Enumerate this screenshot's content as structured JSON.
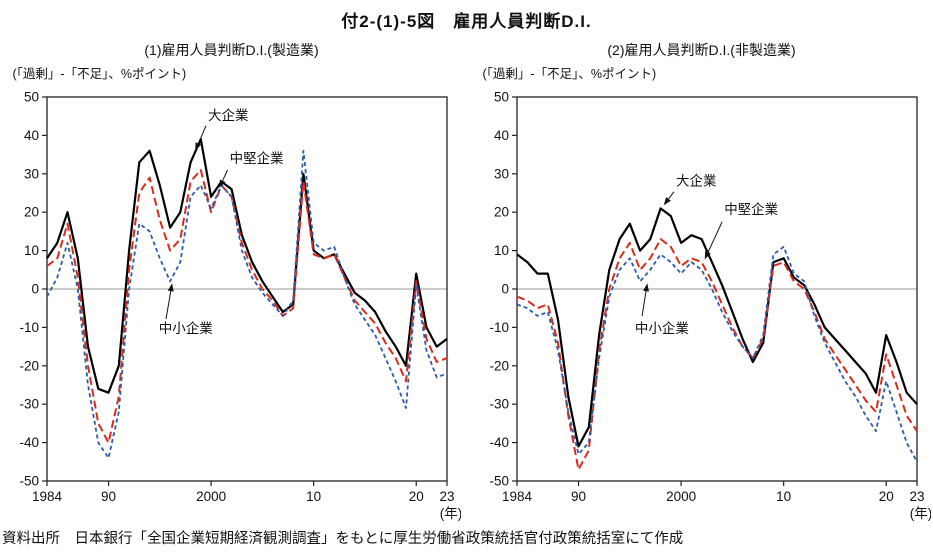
{
  "page": {
    "title": "付2-(1)-5図　雇用人員判断D.I.",
    "source": "資料出所　日本銀行「全国企業短期経済観測調査」をもとに厚生労働省政策統括官付政策統括室にて作成"
  },
  "chart_data": [
    {
      "type": "line",
      "title": "(1)雇用人員判断D.I.(製造業)",
      "ylabel": "(「過剰」-「不足」、%ポイント)",
      "xlabel": "(年)",
      "xlim": [
        1984,
        2023
      ],
      "ylim": [
        -50,
        50
      ],
      "ytick_step": 10,
      "grid": "zero-line-only",
      "xticks": [
        {
          "x": 1984,
          "label": "1984"
        },
        {
          "x": 1990,
          "label": "90"
        },
        {
          "x": 2000,
          "label": "2000"
        },
        {
          "x": 2010,
          "label": "10"
        },
        {
          "x": 2020,
          "label": "20"
        },
        {
          "x": 2023,
          "label": "23"
        }
      ],
      "x": [
        1984,
        1985,
        1986,
        1987,
        1988,
        1989,
        1990,
        1991,
        1992,
        1993,
        1994,
        1995,
        1996,
        1997,
        1998,
        1999,
        2000,
        2001,
        2002,
        2003,
        2004,
        2005,
        2006,
        2007,
        2008,
        2009,
        2010,
        2011,
        2012,
        2013,
        2014,
        2015,
        2016,
        2017,
        2018,
        2019,
        2020,
        2021,
        2022,
        2023
      ],
      "series": [
        {
          "name": "大企業",
          "color": "#000000",
          "dash": "",
          "width": 2.2,
          "values": [
            8,
            12,
            20,
            8,
            -15,
            -26,
            -27,
            -20,
            10,
            33,
            36,
            27,
            16,
            20,
            33,
            39,
            24,
            28,
            26,
            14,
            7,
            2,
            -2,
            -6,
            -4,
            30,
            10,
            8,
            9,
            4,
            -1,
            -3,
            -6,
            -11,
            -15,
            -20,
            4,
            -10,
            -15,
            -13
          ]
        },
        {
          "name": "中堅企業",
          "color": "#d92b1c",
          "dash": "8 4",
          "width": 2.0,
          "values": [
            6,
            8,
            17,
            3,
            -20,
            -35,
            -40,
            -28,
            5,
            25,
            29,
            18,
            10,
            13,
            28,
            31,
            20,
            27,
            24,
            12,
            5,
            0,
            -3,
            -7,
            -5,
            28,
            9,
            8,
            9,
            3,
            -3,
            -6,
            -9,
            -14,
            -18,
            -24,
            2,
            -13,
            -19,
            -18
          ]
        },
        {
          "name": "中小企業",
          "color": "#2a5caa",
          "dash": "4 3",
          "width": 1.8,
          "values": [
            -2,
            3,
            12,
            0,
            -25,
            -40,
            -44,
            -32,
            0,
            17,
            15,
            8,
            2,
            7,
            24,
            27,
            21,
            27,
            24,
            10,
            3,
            -1,
            -4,
            -7,
            -3,
            36,
            12,
            10,
            11,
            3,
            -4,
            -8,
            -12,
            -18,
            -24,
            -31,
            1,
            -16,
            -23,
            -22
          ]
        }
      ],
      "annotations": [
        {
          "label": "大企業",
          "anchor": "start",
          "text_x": 1999.7,
          "text_y": 44.0,
          "line": [
            1999.5,
            42.5,
            1998.45,
            36.0
          ]
        },
        {
          "label": "中堅企業",
          "anchor": "start",
          "text_x": 2001.8,
          "text_y": 32.8,
          "line": [
            2001.6,
            31.0,
            2000.8,
            26.3
          ]
        },
        {
          "label": "中小企業",
          "anchor": "start",
          "text_x": 1994.9,
          "text_y": -11.5,
          "line": [
            1995.6,
            -7.8,
            1996.2,
            1.5
          ]
        }
      ]
    },
    {
      "type": "line",
      "title": "(2)雇用人員判断D.I.(非製造業)",
      "ylabel": "(「過剰」-「不足」、%ポイント)",
      "xlabel": "(年)",
      "xlim": [
        1984,
        2023
      ],
      "ylim": [
        -50,
        50
      ],
      "ytick_step": 10,
      "grid": "zero-line-only",
      "xticks": [
        {
          "x": 1984,
          "label": "1984"
        },
        {
          "x": 1990,
          "label": "90"
        },
        {
          "x": 2000,
          "label": "2000"
        },
        {
          "x": 2010,
          "label": "10"
        },
        {
          "x": 2020,
          "label": "20"
        },
        {
          "x": 2023,
          "label": "23"
        }
      ],
      "x": [
        1984,
        1985,
        1986,
        1987,
        1988,
        1989,
        1990,
        1991,
        1992,
        1993,
        1994,
        1995,
        1996,
        1997,
        1998,
        1999,
        2000,
        2001,
        2002,
        2003,
        2004,
        2005,
        2006,
        2007,
        2008,
        2009,
        2010,
        2011,
        2012,
        2013,
        2014,
        2015,
        2016,
        2017,
        2018,
        2019,
        2020,
        2021,
        2022,
        2023
      ],
      "series": [
        {
          "name": "大企業",
          "color": "#000000",
          "dash": "",
          "width": 2.2,
          "values": [
            9,
            7,
            4,
            4,
            -8,
            -28,
            -41,
            -36,
            -12,
            5,
            13,
            17,
            10,
            13,
            21,
            19,
            12,
            14,
            13,
            7,
            1,
            -6,
            -13,
            -19,
            -14,
            7,
            8,
            3,
            1,
            -4,
            -10,
            -13,
            -16,
            -19,
            -22,
            -27,
            -12,
            -19,
            -27,
            -30
          ]
        },
        {
          "name": "中堅企業",
          "color": "#d92b1c",
          "dash": "8 4",
          "width": 2.0,
          "values": [
            -2,
            -3,
            -5,
            -4,
            -14,
            -33,
            -47,
            -42,
            -16,
            0,
            8,
            12,
            5,
            8,
            13,
            11,
            6,
            8,
            7,
            2,
            -4,
            -10,
            -15,
            -18,
            -13,
            6,
            7,
            2,
            0,
            -6,
            -13,
            -17,
            -21,
            -25,
            -29,
            -32,
            -17,
            -25,
            -33,
            -37
          ]
        },
        {
          "name": "中小企業",
          "color": "#2a5caa",
          "dash": "4 3",
          "width": 1.8,
          "values": [
            -4,
            -5,
            -7,
            -6,
            -16,
            -32,
            -43,
            -40,
            -18,
            -2,
            5,
            8,
            2,
            5,
            9,
            7,
            4,
            7,
            5,
            0,
            -6,
            -11,
            -15,
            -18,
            -12,
            9,
            11,
            4,
            2,
            -7,
            -14,
            -19,
            -24,
            -28,
            -33,
            -37,
            -24,
            -32,
            -40,
            -45
          ]
        }
      ],
      "annotations": [
        {
          "label": "大企業",
          "anchor": "start",
          "text_x": 1999.5,
          "text_y": 27.0,
          "line": [
            1999.3,
            25.3,
            1998.3,
            21.8
          ]
        },
        {
          "label": "中堅企業",
          "anchor": "start",
          "text_x": 2004.2,
          "text_y": 19.5,
          "line": [
            2004.0,
            17.5,
            2002.3,
            7.7
          ]
        },
        {
          "label": "中小企業",
          "anchor": "start",
          "text_x": 1995.5,
          "text_y": -11.5,
          "line": [
            1996.2,
            -7.0,
            1996.7,
            1.5
          ]
        }
      ]
    }
  ]
}
